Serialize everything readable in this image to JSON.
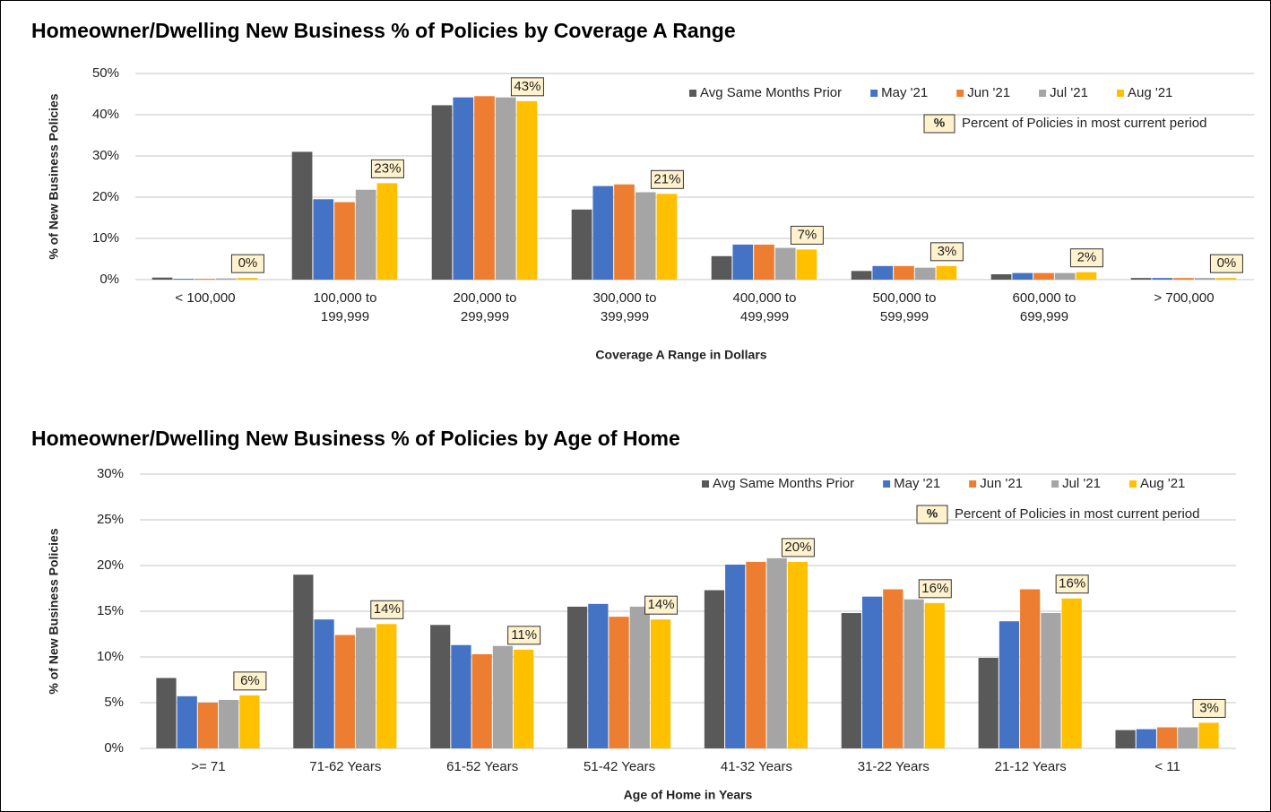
{
  "chart_data": [
    {
      "type": "bar",
      "title": "Homeowner/Dwelling New Business % of Policies by Coverage A Range",
      "y_label": "% of New Business Policies",
      "x_label": "Coverage A Range in Dollars",
      "categories": [
        "< 100,000",
        "100,000 to\n199,999",
        "200,000 to\n299,999",
        "300,000 to\n399,999",
        "400,000 to\n499,999",
        "500,000 to\n599,999",
        "600,000 to\n699,999",
        "> 700,000"
      ],
      "series": [
        {
          "name": "Avg Same Months Prior",
          "color": "#595959",
          "values": [
            0.5,
            31,
            42.3,
            17,
            5.7,
            2.1,
            1.3,
            0.4
          ]
        },
        {
          "name": "May '21",
          "color": "#4472c4",
          "values": [
            0.2,
            19.5,
            44.2,
            22.7,
            8.5,
            3.3,
            1.6,
            0.4
          ]
        },
        {
          "name": "Jun '21",
          "color": "#ed7d31",
          "values": [
            0.2,
            18.8,
            44.5,
            23.1,
            8.5,
            3.3,
            1.6,
            0.4
          ]
        },
        {
          "name": "Jul '21",
          "color": "#a5a5a5",
          "values": [
            0.3,
            21.8,
            44.2,
            21.2,
            7.7,
            2.9,
            1.6,
            0.4
          ]
        },
        {
          "name": "Aug '21",
          "color": "#ffc000",
          "values": [
            0.4,
            23.4,
            43.3,
            20.8,
            7.3,
            3.3,
            1.8,
            0.4
          ],
          "value_labels": [
            "0%",
            "23%",
            "43%",
            "21%",
            "7%",
            "3%",
            "2%",
            "0%"
          ]
        }
      ],
      "legend_note_marker": "%",
      "legend_note": "Percent of Policies in most current period",
      "legend": "upper right",
      "grid": true,
      "ylim": [
        0,
        50
      ],
      "yticks": [
        {
          "value": 0,
          "label": "0%"
        },
        {
          "value": 10,
          "label": "10%"
        },
        {
          "value": 20,
          "label": "20%"
        },
        {
          "value": 30,
          "label": "30%"
        },
        {
          "value": 40,
          "label": "40%"
        },
        {
          "value": 50,
          "label": "50%"
        }
      ]
    },
    {
      "type": "bar",
      "title": "Homeowner/Dwelling New Business % of Policies by Age of Home",
      "y_label": "% of New Business Policies",
      "x_label": "Age of Home in Years",
      "categories": [
        ">= 71",
        "71-62 Years",
        "61-52 Years",
        "51-42 Years",
        "41-32 Years",
        "31-22 Years",
        "21-12 Years",
        "< 11"
      ],
      "series": [
        {
          "name": "Avg Same Months Prior",
          "color": "#595959",
          "values": [
            7.7,
            19,
            13.5,
            15.5,
            17.3,
            14.8,
            9.9,
            2.0
          ]
        },
        {
          "name": "May '21",
          "color": "#4472c4",
          "values": [
            5.7,
            14.1,
            11.3,
            15.8,
            20.1,
            16.6,
            13.9,
            2.1
          ]
        },
        {
          "name": "Jun '21",
          "color": "#ed7d31",
          "values": [
            5.0,
            12.4,
            10.3,
            14.4,
            20.4,
            17.4,
            17.4,
            2.3
          ]
        },
        {
          "name": "Jul '21",
          "color": "#a5a5a5",
          "values": [
            5.3,
            13.2,
            11.2,
            15.5,
            20.8,
            16.3,
            14.8,
            2.3
          ]
        },
        {
          "name": "Aug '21",
          "color": "#ffc000",
          "values": [
            5.8,
            13.6,
            10.8,
            14.1,
            20.4,
            15.9,
            16.4,
            2.8
          ],
          "value_labels": [
            "6%",
            "14%",
            "11%",
            "14%",
            "20%",
            "16%",
            "16%",
            "3%"
          ]
        }
      ],
      "legend_note_marker": "%",
      "legend_note": "Percent of Policies in most current period",
      "legend": "upper right",
      "grid": true,
      "ylim": [
        0,
        30
      ],
      "yticks": [
        {
          "value": 0,
          "label": "0%"
        },
        {
          "value": 5,
          "label": "5%"
        },
        {
          "value": 10,
          "label": "10%"
        },
        {
          "value": 15,
          "label": "15%"
        },
        {
          "value": 20,
          "label": "20%"
        },
        {
          "value": 25,
          "label": "25%"
        },
        {
          "value": 30,
          "label": "30%"
        }
      ]
    }
  ]
}
